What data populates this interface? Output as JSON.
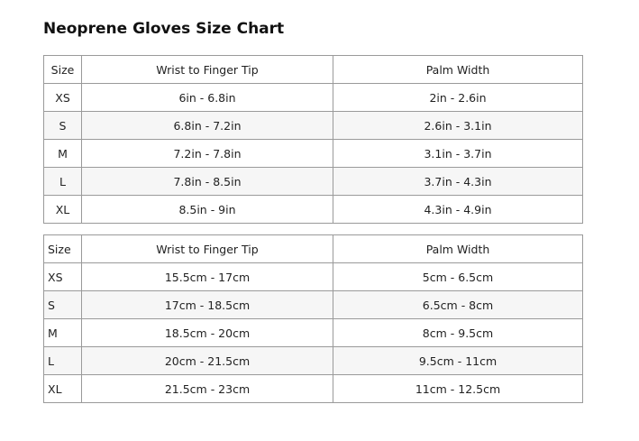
{
  "title": "Neoprene Gloves Size Chart",
  "tables": [
    {
      "headers": [
        "Size",
        "Wrist to Finger Tip",
        "Palm Width"
      ],
      "rows": [
        [
          "XS",
          "6in - 6.8in",
          "2in - 2.6in"
        ],
        [
          "S",
          "6.8in - 7.2in",
          "2.6in - 3.1in"
        ],
        [
          "M",
          "7.2in - 7.8in",
          "3.1in - 3.7in"
        ],
        [
          "L",
          "7.8in - 8.5in",
          "3.7in - 4.3in"
        ],
        [
          "XL",
          "8.5in - 9in",
          "4.3in - 4.9in"
        ]
      ]
    },
    {
      "headers": [
        "Size",
        "Wrist to Finger Tip",
        "Palm Width"
      ],
      "rows": [
        [
          "XS",
          "15.5cm - 17cm",
          "5cm - 6.5cm"
        ],
        [
          "S",
          "17cm - 18.5cm",
          "6.5cm - 8cm"
        ],
        [
          "M",
          "18.5cm - 20cm",
          "8cm - 9.5cm"
        ],
        [
          "L",
          "20cm - 21.5cm",
          "9.5cm - 11cm"
        ],
        [
          "XL",
          "21.5cm - 23cm",
          "11cm - 12.5cm"
        ]
      ]
    }
  ]
}
